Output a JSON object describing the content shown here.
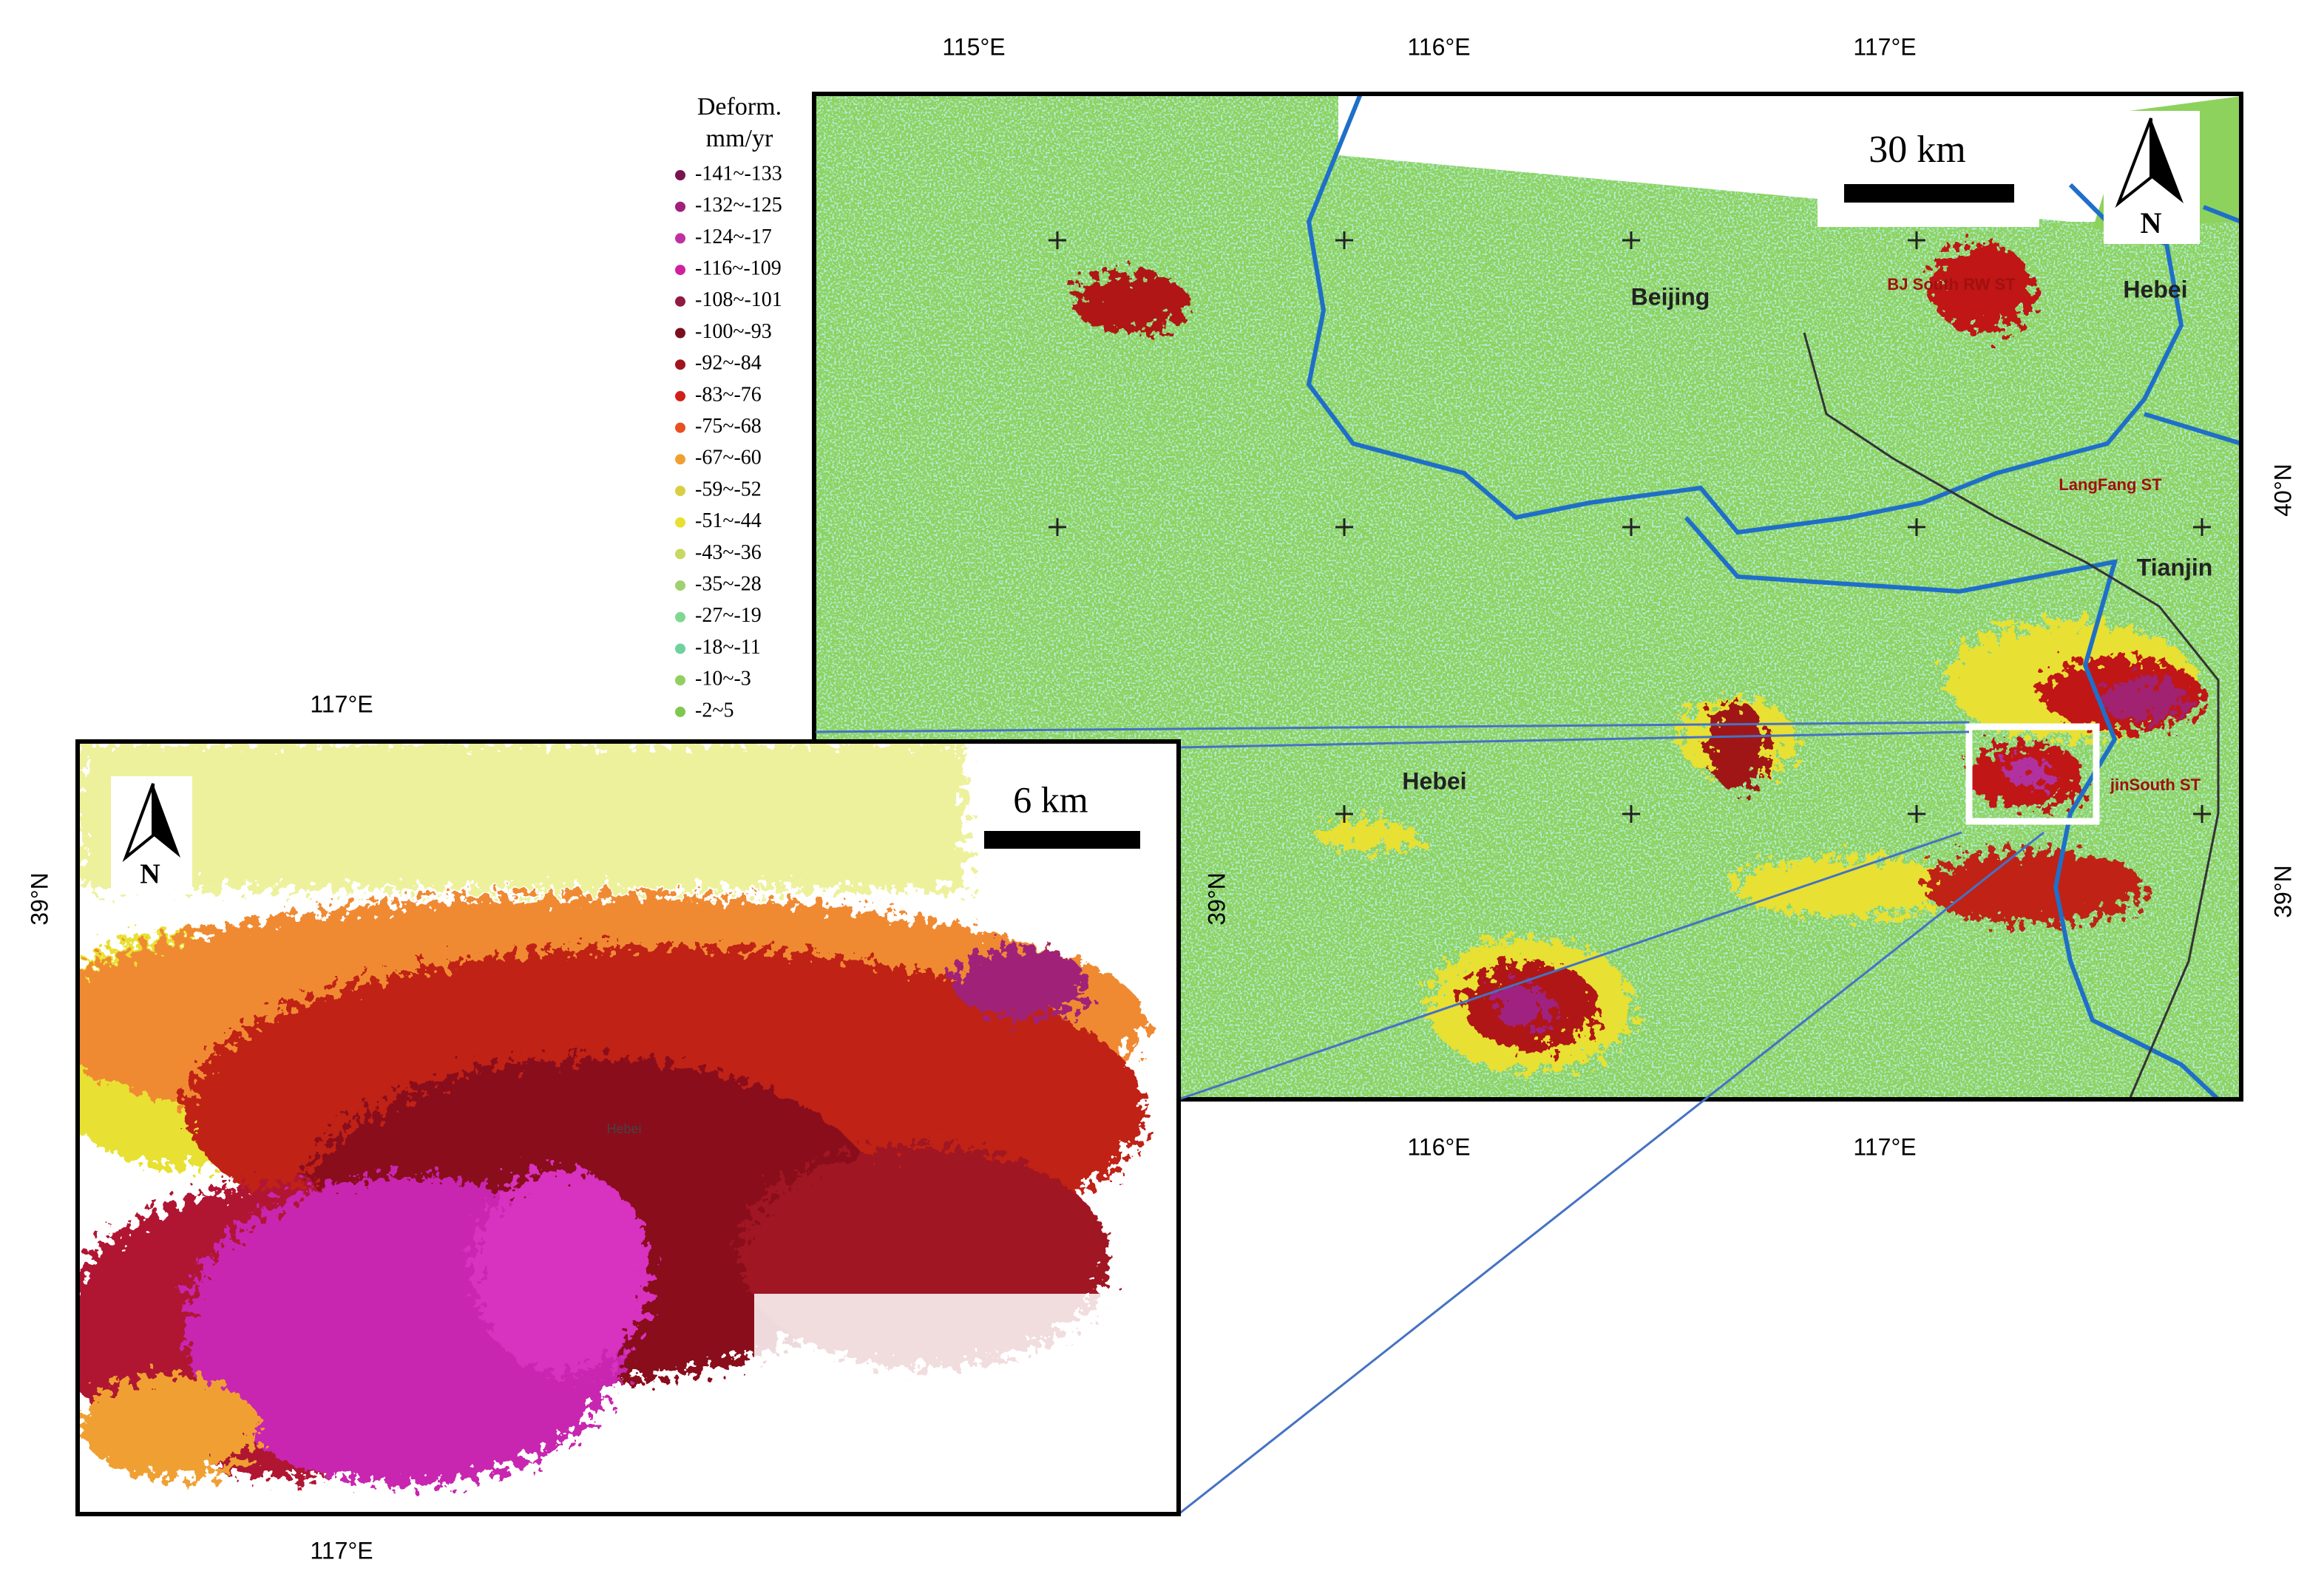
{
  "legend": {
    "title": "Deform.",
    "unit": "mm/yr",
    "items": [
      {
        "label": "-141~-133",
        "color": "#7a1450"
      },
      {
        "label": "-132~-125",
        "color": "#a0207a"
      },
      {
        "label": "-124~-17",
        "color": "#c030a0"
      },
      {
        "label": "-116~-109",
        "color": "#d020a0"
      },
      {
        "label": "-108~-101",
        "color": "#901a40"
      },
      {
        "label": "-100~-93",
        "color": "#7a0e1e"
      },
      {
        "label": "-92~-84",
        "color": "#a0141e"
      },
      {
        "label": "-83~-76",
        "color": "#d02018"
      },
      {
        "label": "-75~-68",
        "color": "#e85020"
      },
      {
        "label": "-67~-60",
        "color": "#f0a030"
      },
      {
        "label": "-59~-52",
        "color": "#d8d040"
      },
      {
        "label": "-51~-44",
        "color": "#e8e030"
      },
      {
        "label": "-43~-36",
        "color": "#c8d860"
      },
      {
        "label": "-35~-28",
        "color": "#a0d070"
      },
      {
        "label": "-27~-19",
        "color": "#80d890"
      },
      {
        "label": "-18~-11",
        "color": "#70d0a0"
      },
      {
        "label": "-10~-3",
        "color": "#90d060"
      },
      {
        "label": "-2~5",
        "color": "#7cc850"
      }
    ]
  },
  "main_map": {
    "top_ticks": [
      "115°E",
      "116°E",
      "117°E"
    ],
    "bottom_ticks": [
      "116°E",
      "117°E"
    ],
    "right_ticks": [
      "40°N",
      "39°N"
    ],
    "left_ticks": [
      "39°N"
    ],
    "scale_bar": "30 km",
    "north": "N",
    "places": [
      "Beijing",
      "Hebei",
      "Tianjin",
      "Hebei"
    ],
    "stations": [
      "BJ South RW ST",
      "LangFang ST",
      "jinSouth ST"
    ]
  },
  "inset": {
    "top_ticks": [
      "117°E"
    ],
    "bottom_ticks": [
      "117°E"
    ],
    "left_ticks": [
      "39°N"
    ],
    "scale_bar": "6 km",
    "north": "N",
    "places": [
      "Hebei"
    ]
  }
}
